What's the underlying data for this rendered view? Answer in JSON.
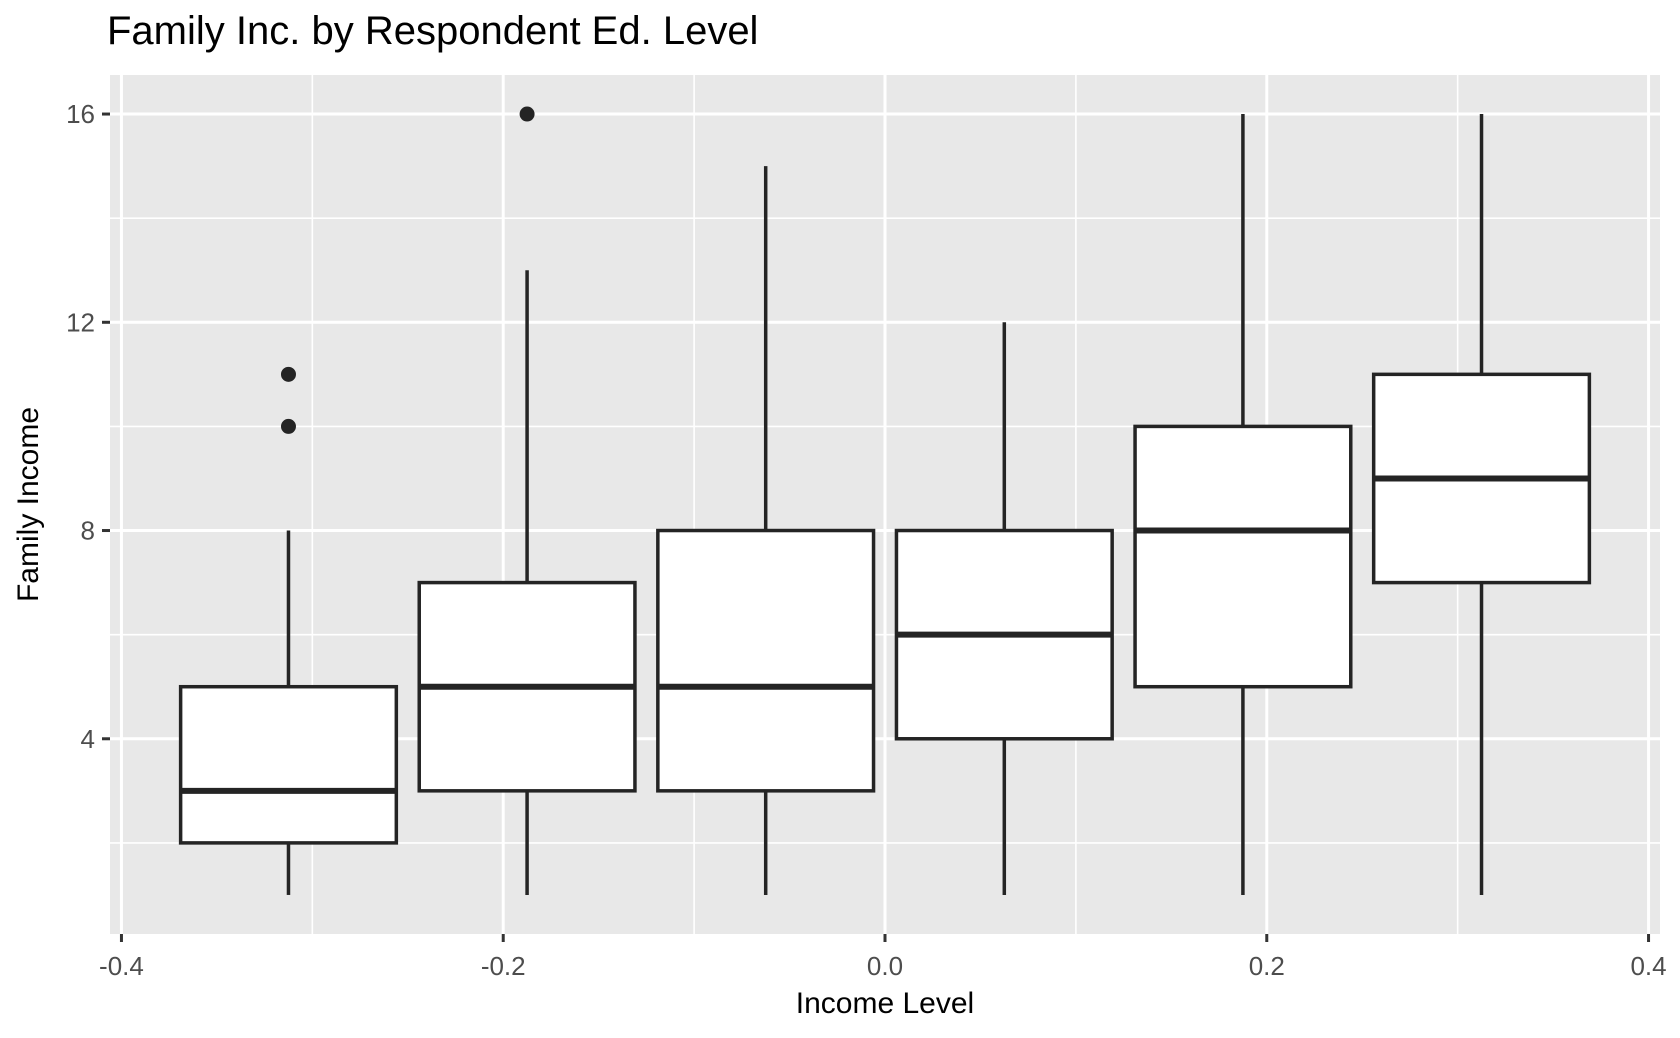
{
  "chart_data": {
    "type": "boxplot",
    "title": "Family Inc. by Respondent Ed. Level",
    "xlabel": "Income Level",
    "ylabel": "Family Income",
    "xlim": [
      -0.406,
      0.406
    ],
    "ylim": [
      0.25,
      16.75
    ],
    "grid": true,
    "legend": "none",
    "theme": "ggplot-gray",
    "box_width": 0.113,
    "x_ticks": {
      "major": [
        -0.4,
        -0.2,
        0.0,
        0.2,
        0.4
      ],
      "labels": [
        "-0.4",
        "-0.2",
        "0.0",
        "0.2",
        "0.4"
      ],
      "minor": [
        -0.3,
        -0.1,
        0.1,
        0.3
      ]
    },
    "y_ticks": {
      "major": [
        4,
        8,
        12,
        16
      ],
      "labels": [
        "4",
        "8",
        "12",
        "16"
      ],
      "minor": [
        2,
        6,
        10,
        14
      ]
    },
    "series": [
      {
        "x": -0.3125,
        "whisker_low": 1,
        "q1": 2,
        "median": 3,
        "q3": 5,
        "whisker_high": 8,
        "outliers": [
          10,
          11
        ]
      },
      {
        "x": -0.1875,
        "whisker_low": 1,
        "q1": 3,
        "median": 5,
        "q3": 7,
        "whisker_high": 13,
        "outliers": [
          16
        ]
      },
      {
        "x": -0.0625,
        "whisker_low": 1,
        "q1": 3,
        "median": 5,
        "q3": 8,
        "whisker_high": 15,
        "outliers": []
      },
      {
        "x": 0.0625,
        "whisker_low": 1,
        "q1": 4,
        "median": 6,
        "q3": 8,
        "whisker_high": 12,
        "outliers": []
      },
      {
        "x": 0.1875,
        "whisker_low": 1,
        "q1": 5,
        "median": 8,
        "q3": 10,
        "whisker_high": 16,
        "outliers": []
      },
      {
        "x": 0.3125,
        "whisker_low": 1,
        "q1": 7,
        "median": 9,
        "q3": 11,
        "whisker_high": 16,
        "outliers": []
      }
    ],
    "colors": {
      "panel_bg": "#E8E8E8",
      "grid": "#FFFFFF",
      "box_fill": "#FFFFFF",
      "box_stroke": "#242424",
      "outlier": "#242424",
      "tick_mark": "#333333",
      "tick_label": "#4D4D4D",
      "text": "#000000"
    }
  }
}
